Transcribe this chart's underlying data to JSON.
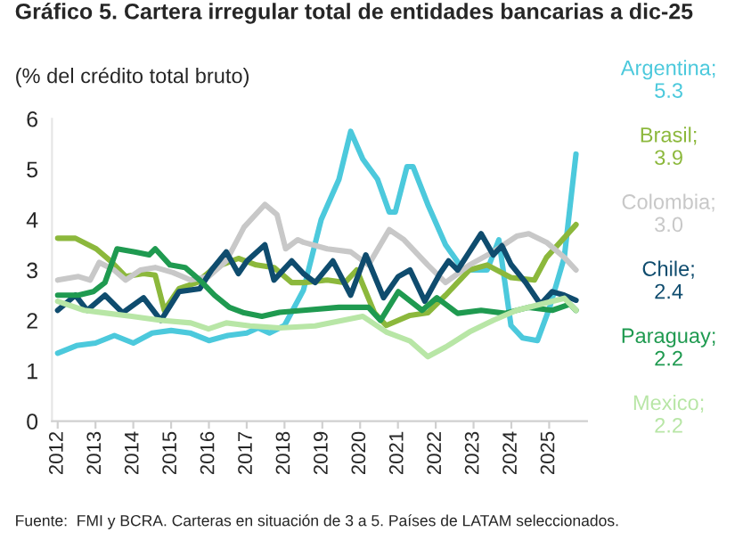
{
  "chart_data": {
    "type": "line",
    "title": "Gráfico 5. Cartera irregular total de entidades bancarias a dic-25",
    "subtitle": "(% del crédito total bruto)",
    "annotations": [
      "Fuente:  FMI y BCRA. Carteras en situación de 3 a 5. Países de LATAM seleccionados."
    ],
    "xlim": [
      2011.85,
      2026.0
    ],
    "xticks": [
      2012,
      2013,
      2014,
      2015,
      2016,
      2017,
      2018,
      2019,
      2020,
      2021,
      2022,
      2023,
      2024,
      2025
    ],
    "ylim": [
      0,
      6
    ],
    "yticks": [
      0,
      1,
      2,
      3,
      4,
      5,
      6
    ],
    "grid": false,
    "legend": false,
    "marker": "none",
    "line_style": "solid",
    "series": [
      {
        "name": "Argentina;\n5.3",
        "color": "#4cc9dc",
        "x": [
          2012.0,
          2012.5,
          2013.0,
          2013.5,
          2014.0,
          2014.5,
          2015.0,
          2015.5,
          2016.0,
          2016.5,
          2017.0,
          2017.3,
          2017.6,
          2018.0,
          2018.5,
          2018.97,
          2019.44,
          2019.75,
          2020.07,
          2020.46,
          2020.77,
          2020.93,
          2021.24,
          2021.4,
          2021.79,
          2022.26,
          2022.73,
          2023.36,
          2023.67,
          2023.83,
          2023.99,
          2024.3,
          2024.69,
          2025.01,
          2025.4,
          2025.71
        ],
        "values": [
          1.35,
          1.5,
          1.55,
          1.7,
          1.55,
          1.75,
          1.8,
          1.75,
          1.6,
          1.7,
          1.75,
          1.85,
          1.75,
          1.9,
          2.6,
          4.0,
          4.8,
          5.75,
          5.2,
          4.8,
          4.15,
          4.15,
          5.05,
          5.05,
          4.3,
          3.5,
          3.0,
          3.0,
          3.6,
          2.75,
          1.9,
          1.65,
          1.6,
          2.25,
          3.25,
          5.3
        ]
      },
      {
        "name": "Brasil;\n3.9",
        "color": "#8cb83c",
        "x": [
          2012.0,
          2012.47,
          2013.02,
          2013.41,
          2013.8,
          2014.27,
          2014.58,
          2014.82,
          2015.21,
          2015.68,
          2016.15,
          2016.78,
          2017.25,
          2017.72,
          2018.19,
          2018.5,
          2019.13,
          2019.6,
          2019.91,
          2020.38,
          2020.69,
          2021.32,
          2021.79,
          2022.26,
          2022.89,
          2023.36,
          2023.99,
          2024.61,
          2024.93,
          2025.71
        ],
        "values": [
          3.63,
          3.63,
          3.42,
          3.17,
          2.87,
          2.93,
          2.9,
          2.2,
          2.63,
          2.75,
          3.05,
          3.23,
          3.1,
          3.05,
          2.75,
          2.75,
          2.8,
          2.75,
          3.0,
          2.15,
          1.9,
          2.1,
          2.15,
          2.5,
          3.0,
          3.1,
          2.85,
          2.8,
          3.25,
          3.9
        ]
      },
      {
        "name": "Colombia;\n3.0",
        "color": "#c8c8c8",
        "x": [
          2012.0,
          2012.55,
          2012.86,
          2013.1,
          2013.49,
          2013.8,
          2014.19,
          2014.58,
          2015.05,
          2015.52,
          2015.99,
          2016.46,
          2016.93,
          2017.48,
          2017.8,
          2018.03,
          2018.35,
          2018.5,
          2019.13,
          2019.75,
          2020.22,
          2020.77,
          2021.16,
          2021.79,
          2022.26,
          2022.89,
          2023.52,
          2024.14,
          2024.46,
          2024.93,
          2025.4,
          2025.71
        ],
        "values": [
          2.8,
          2.87,
          2.8,
          3.15,
          3.0,
          2.8,
          3.0,
          3.05,
          2.95,
          2.8,
          2.87,
          3.18,
          3.85,
          4.3,
          4.1,
          3.42,
          3.6,
          3.55,
          3.42,
          3.36,
          3.1,
          3.8,
          3.6,
          3.1,
          2.75,
          3.1,
          3.36,
          3.67,
          3.72,
          3.55,
          3.25,
          3.0
        ]
      },
      {
        "name": "Chile;\n2.4",
        "color": "#0f4c6e",
        "x": [
          2012.0,
          2012.47,
          2012.78,
          2013.25,
          2013.72,
          2014.27,
          2014.73,
          2015.21,
          2015.76,
          2016.07,
          2016.46,
          2016.78,
          2017.01,
          2017.48,
          2017.72,
          2018.19,
          2018.5,
          2018.81,
          2019.28,
          2019.75,
          2020.15,
          2020.62,
          2021.01,
          2021.32,
          2021.71,
          2022.11,
          2022.34,
          2022.58,
          2022.89,
          2023.2,
          2023.52,
          2023.75,
          2023.99,
          2024.38,
          2024.77,
          2025.08,
          2025.4,
          2025.71
        ],
        "values": [
          2.2,
          2.5,
          2.2,
          2.5,
          2.15,
          2.45,
          2.0,
          2.57,
          2.63,
          3.0,
          3.36,
          2.93,
          3.18,
          3.5,
          2.8,
          3.18,
          2.93,
          2.75,
          3.18,
          2.5,
          3.3,
          2.45,
          2.87,
          3.0,
          2.38,
          2.93,
          3.18,
          3.0,
          3.36,
          3.72,
          3.3,
          3.48,
          3.11,
          2.75,
          2.32,
          2.57,
          2.5,
          2.4
        ]
      },
      {
        "name": "Paraguay;\n2.2",
        "color": "#1f9a50",
        "x": [
          2012.0,
          2012.55,
          2012.94,
          2013.25,
          2013.57,
          2014.04,
          2014.42,
          2014.58,
          2014.97,
          2015.37,
          2015.76,
          2016.15,
          2016.54,
          2016.93,
          2017.4,
          2017.87,
          2018.5,
          2019.44,
          2020.22,
          2020.54,
          2021.01,
          2021.64,
          2022.03,
          2022.58,
          2023.2,
          2023.83,
          2024.46,
          2025.08,
          2025.55,
          2025.71
        ],
        "values": [
          2.5,
          2.5,
          2.57,
          2.75,
          3.42,
          3.36,
          3.3,
          3.42,
          3.1,
          3.05,
          2.8,
          2.5,
          2.26,
          2.15,
          2.08,
          2.16,
          2.2,
          2.26,
          2.26,
          2.0,
          2.57,
          2.2,
          2.45,
          2.14,
          2.2,
          2.14,
          2.26,
          2.2,
          2.32,
          2.2
        ]
      },
      {
        "name": "Mexico;\n2.2",
        "color": "#b8e6a6",
        "x": [
          2012.0,
          2012.7,
          2013.33,
          2013.96,
          2014.73,
          2015.52,
          2015.99,
          2016.46,
          2017.09,
          2017.87,
          2018.81,
          2020.07,
          2020.69,
          2021.32,
          2021.79,
          2022.26,
          2022.89,
          2023.52,
          2024.14,
          2024.77,
          2025.4,
          2025.71
        ],
        "values": [
          2.38,
          2.2,
          2.14,
          2.08,
          2.0,
          1.95,
          1.83,
          1.95,
          1.89,
          1.85,
          1.89,
          2.08,
          1.77,
          1.59,
          1.28,
          1.47,
          1.77,
          2.0,
          2.2,
          2.32,
          2.44,
          2.2
        ]
      }
    ]
  }
}
